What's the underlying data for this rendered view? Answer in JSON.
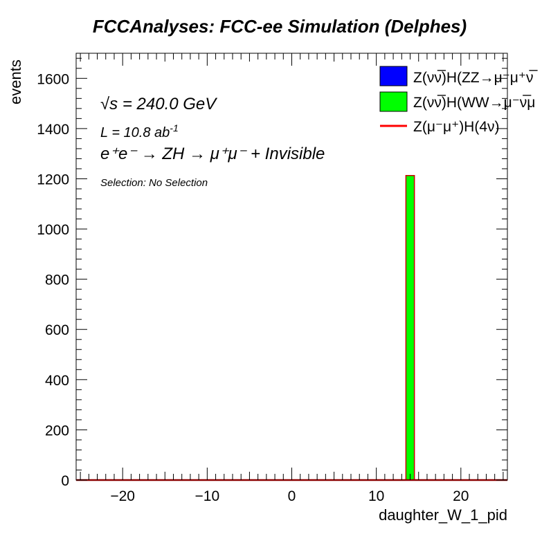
{
  "chart_data": {
    "type": "bar",
    "title": "FCCAnalyses: FCC-ee Simulation (Delphes)",
    "xlabel": "daughter_W_1_pid",
    "ylabel": "events",
    "xlim": [
      -25.5,
      25.5
    ],
    "ylim": [
      0,
      1700
    ],
    "x_ticks": [
      -20,
      -10,
      0,
      10,
      20
    ],
    "x_tick_labels": [
      "−20",
      "−10",
      "0",
      "10",
      "20"
    ],
    "y_ticks": [
      0,
      200,
      400,
      600,
      800,
      1000,
      1200,
      1400,
      1600
    ],
    "y_tick_labels": [
      "0",
      "200",
      "400",
      "600",
      "800",
      "1000",
      "1200",
      "1400",
      "1600"
    ],
    "grid": false,
    "legend_position": "top-right",
    "series": [
      {
        "name": "Z(νν̅)H(ZZ→μ⁻μ⁺νν̅)",
        "style": "fill",
        "color": "#0000ff",
        "bins": []
      },
      {
        "name": "Z(νν̅)H(WW→μ⁻ν̅μ⁺ν)",
        "style": "fill",
        "color": "#00ff00",
        "bins": [
          {
            "x_low": 13.5,
            "x_high": 14.5,
            "value": 1213
          }
        ]
      },
      {
        "name": "Z(μ⁻μ⁺)H(4ν)",
        "style": "line",
        "color": "#ff0000",
        "bins": []
      }
    ],
    "legend_labels": [
      "Z(νν̅)H(ZZ→μ⁻μ⁺ν̅",
      "Z(νν̅)H(WW→μ⁻ν̅μ",
      "Z(μ⁻μ⁺)H(4ν)"
    ],
    "annotations": {
      "sqrt_s_prefix": "√s",
      "sqrt_s_value": " = 240.0 GeV",
      "lumi_prefix": "L = 10.8 ab",
      "lumi_exp": "-1",
      "process": "e⁺e⁻ → ZH → μ⁺μ⁻ + Invisible",
      "selection": "Selection: No Selection"
    }
  }
}
